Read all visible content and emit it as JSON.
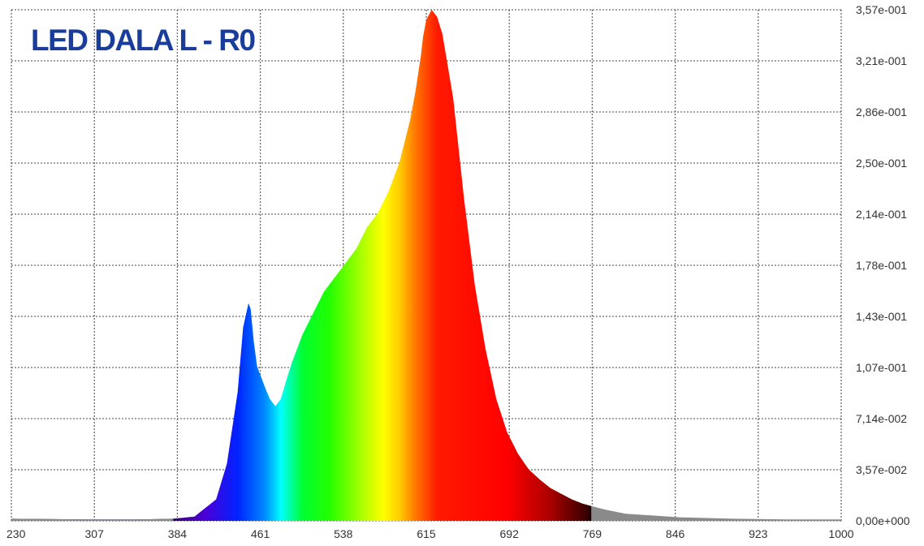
{
  "chart_data": {
    "type": "area",
    "title": "LED DALA L - R0",
    "title_color": "#1a3d9c",
    "xlabel": "",
    "ylabel": "",
    "xlim": [
      230,
      1000
    ],
    "ylim": [
      0,
      0.357
    ],
    "x_ticks": [
      "230",
      "307",
      "384",
      "461",
      "538",
      "615",
      "692",
      "769",
      "846",
      "923",
      "1000"
    ],
    "y_ticks": [
      "0,00e+000",
      "3,57e-002",
      "7,14e-002",
      "1,07e-001",
      "1,43e-001",
      "1,78e-001",
      "2,14e-001",
      "2,50e-001",
      "2,86e-001",
      "3,21e-001",
      "3,57e-001"
    ],
    "grid": true,
    "visible_range_nm": [
      380,
      780
    ],
    "out_of_visible_color": "#8a8a8a",
    "series": [
      {
        "x": [
          230,
          300,
          350,
          380,
          400,
          420,
          430,
          440,
          445,
          450,
          452,
          455,
          458,
          462,
          466,
          470,
          475,
          480,
          485,
          490,
          500,
          510,
          520,
          530,
          540,
          550,
          560,
          570,
          580,
          590,
          600,
          605,
          610,
          612,
          615,
          620,
          625,
          630,
          640,
          650,
          660,
          670,
          680,
          690,
          700,
          710,
          720,
          730,
          740,
          750,
          760,
          770,
          780,
          800,
          850,
          900,
          950,
          1000
        ],
        "y": [
          0.0015,
          0.001,
          0.001,
          0.0015,
          0.003,
          0.015,
          0.04,
          0.09,
          0.135,
          0.152,
          0.148,
          0.125,
          0.108,
          0.1,
          0.092,
          0.085,
          0.08,
          0.085,
          0.098,
          0.11,
          0.13,
          0.145,
          0.16,
          0.17,
          0.18,
          0.19,
          0.205,
          0.215,
          0.23,
          0.25,
          0.28,
          0.3,
          0.325,
          0.338,
          0.35,
          0.357,
          0.352,
          0.34,
          0.295,
          0.225,
          0.165,
          0.12,
          0.085,
          0.062,
          0.047,
          0.036,
          0.029,
          0.023,
          0.019,
          0.015,
          0.012,
          0.01,
          0.008,
          0.005,
          0.0025,
          0.0015,
          0.001,
          0.001
        ]
      }
    ]
  }
}
